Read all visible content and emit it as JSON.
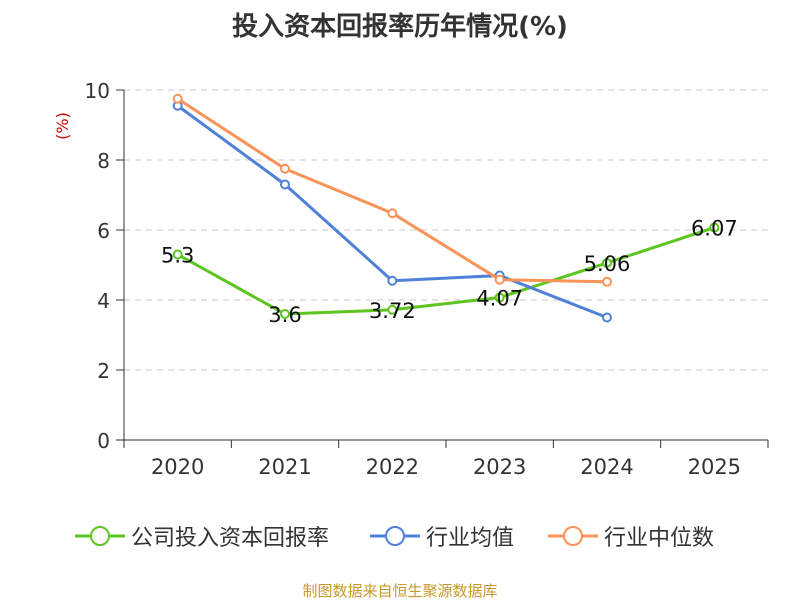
{
  "title": "投入资本回报率历年情况(%)",
  "source": "制图数据来自恒生聚源数据库",
  "chart_data": {
    "type": "line",
    "title": "投入资本回报率历年情况(%)",
    "ylabel": "(%)",
    "xlabel": "",
    "ylim": [
      0,
      10
    ],
    "yticks": [
      "0",
      "2",
      "4",
      "6",
      "8",
      "10"
    ],
    "categories": [
      "2020",
      "2021",
      "2022",
      "2023",
      "2024",
      "2025"
    ],
    "legend_position": "bottom",
    "grid": "horizontal-dashed",
    "series": [
      {
        "name": "公司投入资本回报率",
        "color": "#5cc51f",
        "values": [
          5.3,
          3.6,
          3.72,
          4.07,
          5.06,
          6.07
        ],
        "labels": [
          "5.3",
          "3.6",
          "3.72",
          "4.07",
          "5.06",
          "6.07"
        ]
      },
      {
        "name": "行业均值",
        "color": "#4f81d9",
        "values": [
          9.55,
          7.3,
          4.55,
          4.7,
          3.5,
          null
        ]
      },
      {
        "name": "行业中位数",
        "color": "#f99358",
        "values": [
          9.75,
          7.75,
          6.48,
          4.58,
          4.52,
          null
        ]
      }
    ]
  }
}
